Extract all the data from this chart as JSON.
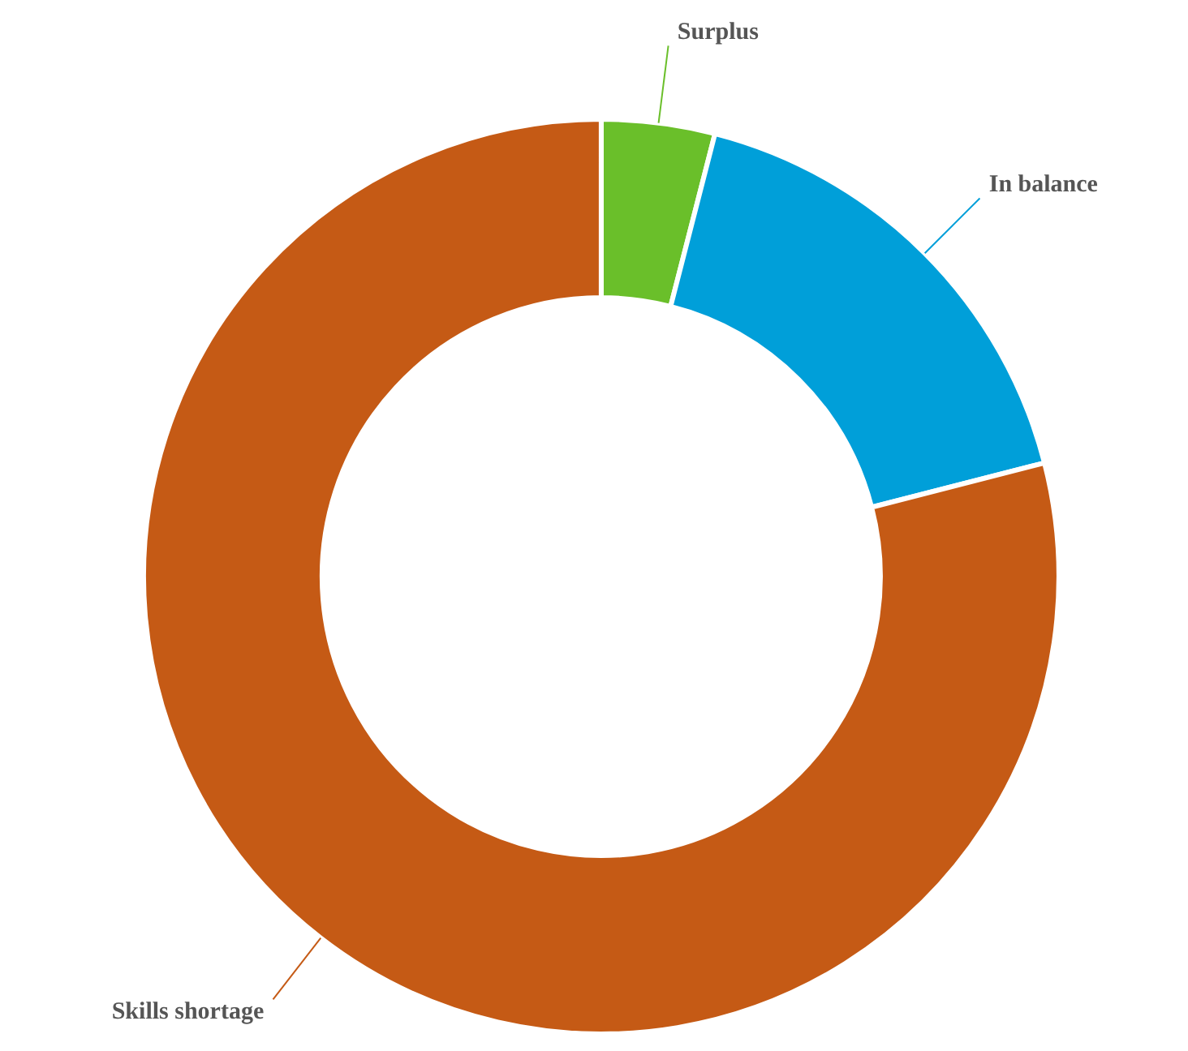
{
  "chart_data": {
    "type": "donut",
    "categories": [
      "Surplus",
      "In balance",
      "Skills shortage"
    ],
    "values": [
      4,
      17,
      79
    ],
    "colors": [
      "#6abf2a",
      "#009fd9",
      "#c55a15"
    ]
  }
}
